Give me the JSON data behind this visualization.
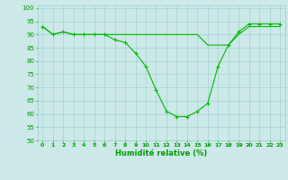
{
  "line1": {
    "x": [
      0,
      1,
      2,
      3,
      4,
      5,
      6,
      7,
      8,
      9,
      10,
      11,
      12,
      13,
      14,
      15,
      16,
      17,
      18,
      19,
      20,
      21,
      22,
      23
    ],
    "y": [
      93,
      90,
      91,
      90,
      90,
      90,
      90,
      88,
      87,
      83,
      78,
      69,
      61,
      59,
      59,
      61,
      64,
      78,
      86,
      91,
      94,
      94,
      94,
      94
    ],
    "color": "#00bb00"
  },
  "line2": {
    "x": [
      0,
      1,
      2,
      3,
      4,
      5,
      6,
      7,
      8,
      9,
      10,
      11,
      12,
      13,
      14,
      15,
      16,
      17,
      18,
      19,
      20,
      21,
      22,
      23
    ],
    "y": [
      93,
      90,
      91,
      90,
      90,
      90,
      90,
      90,
      90,
      90,
      90,
      90,
      90,
      90,
      90,
      90,
      86,
      86,
      86,
      90,
      93,
      93,
      93,
      93
    ],
    "color": "#00bb00"
  },
  "background_color": "#cce8e8",
  "grid_color": "#99cccc",
  "line_color": "#009900",
  "xlabel": "Humidité relative (%)",
  "xlim": [
    -0.5,
    23.5
  ],
  "ylim": [
    50,
    101
  ],
  "yticks": [
    50,
    55,
    60,
    65,
    70,
    75,
    80,
    85,
    90,
    95,
    100
  ],
  "xticks": [
    0,
    1,
    2,
    3,
    4,
    5,
    6,
    7,
    8,
    9,
    10,
    11,
    12,
    13,
    14,
    15,
    16,
    17,
    18,
    19,
    20,
    21,
    22,
    23
  ],
  "xlabel_fontsize": 6.0,
  "xlabel_color": "#009900",
  "tick_fontsize": 4.5,
  "ytick_fontsize": 5.0
}
